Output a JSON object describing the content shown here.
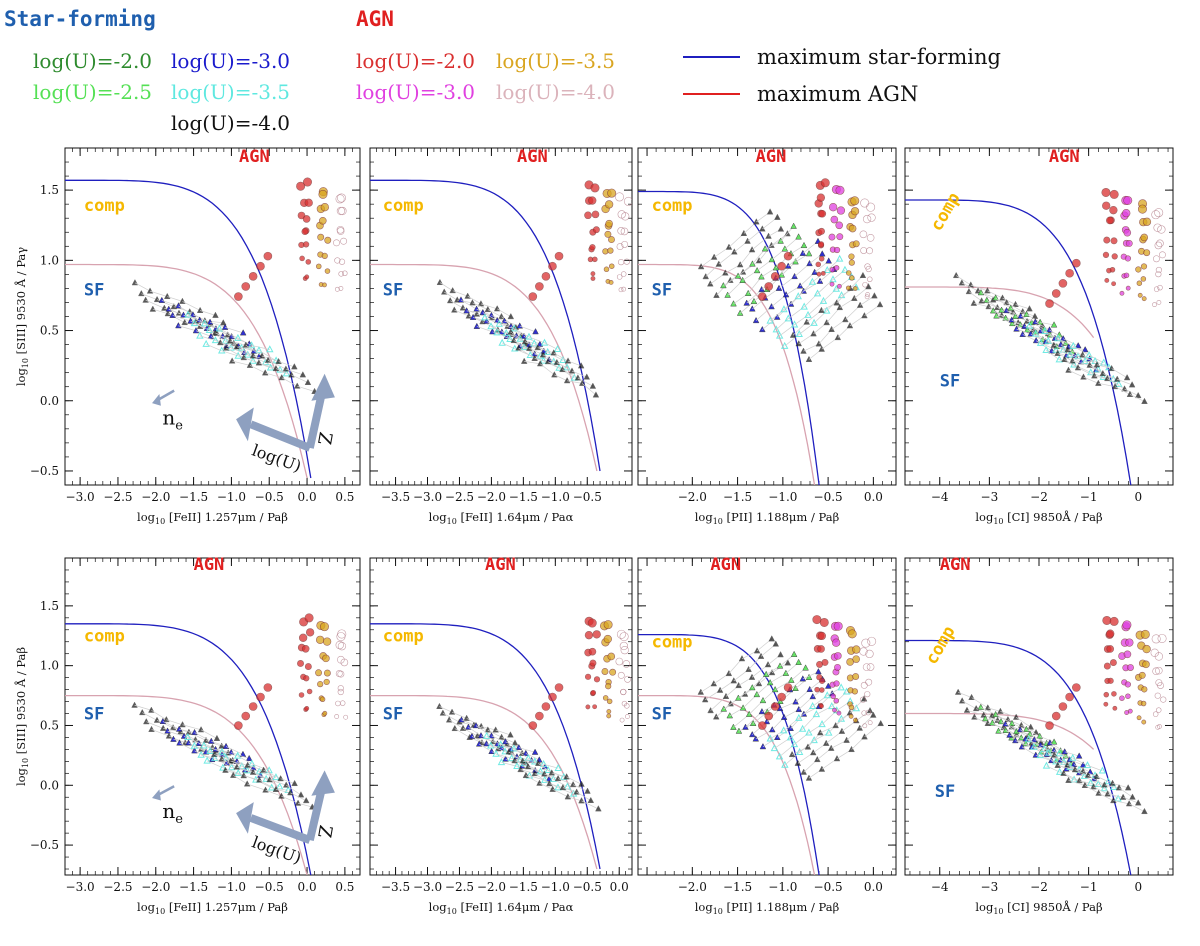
{
  "legend": {
    "sf_title": "Star-forming",
    "agn_title": "AGN",
    "sf_entries": [
      {
        "label": "log(U)=-2.0",
        "color": "#2e8b2e"
      },
      {
        "label": "log(U)=-3.0",
        "color": "#1a1acc"
      },
      {
        "label": "log(U)=-2.5",
        "color": "#55e055"
      },
      {
        "label": "log(U)=-3.5",
        "color": "#5fe8e0"
      },
      {
        "label": "log(U)=-4.0",
        "color": "#111111"
      }
    ],
    "agn_entries": [
      {
        "label": "log(U)=-2.0",
        "color": "#d93030"
      },
      {
        "label": "log(U)=-3.5",
        "color": "#d9a520"
      },
      {
        "label": "log(U)=-3.0",
        "color": "#e040e0"
      },
      {
        "label": "log(U)=-4.0",
        "color": "#dbb3bb"
      }
    ],
    "lines": [
      {
        "label": "maximum star-forming",
        "color": "#1f1fbf"
      },
      {
        "label": "maximum AGN",
        "color": "#e02020"
      }
    ]
  },
  "region_labels": {
    "agn": "AGN",
    "comp": "comp",
    "sf": "SF"
  },
  "arrow_labels": {
    "ne": "n",
    "ne_sub": "e",
    "logu": "log(U)",
    "z": "Z"
  },
  "chart_data": [
    {
      "type": "scatter",
      "row": 0,
      "col": 0,
      "sf_shape": "low",
      "xlabel": "log10 [FeII] 1.257μm / Paβ",
      "ylabel": "log10 [SIII] 9530 Å / Paγ",
      "xlim": [
        -3.2,
        0.7
      ],
      "ylim": [
        -0.6,
        1.8
      ],
      "xticks": [
        -3.0,
        -2.5,
        -2.0,
        -1.5,
        -1.0,
        -0.5,
        0.0,
        0.5
      ],
      "xticklabels": [
        "−3.0",
        "−2.5",
        "−2.0",
        "−1.5",
        "−1.0",
        "−0.5",
        "0.0",
        "0.5"
      ],
      "yticks": [
        -0.5,
        0.0,
        0.5,
        1.0,
        1.5
      ],
      "yticklabels": [
        "−0.5",
        "0.0",
        "0.5",
        "1.0",
        "1.5"
      ],
      "max_sf": {
        "x0": -3.2,
        "y0": 1.57,
        "xe": 0.05,
        "ye": -0.55
      },
      "max_agn": {
        "x0": -3.2,
        "y0": 0.97,
        "xe": 0.0,
        "ye": -0.55
      },
      "clusters": {
        "sf_x": -1.3,
        "sf_y": 0.55,
        "agn_x": -0.05,
        "agn_y": 1.15
      },
      "region_pos": {
        "agn": [
          -0.9,
          1.7
        ],
        "comp": [
          -2.95,
          1.35
        ],
        "sf": [
          -2.95,
          0.75
        ]
      },
      "arrows": true
    },
    {
      "type": "scatter",
      "row": 0,
      "col": 1,
      "sf_shape": "low",
      "xlabel": "log10 [FeII] 1.64μm / Paα",
      "ylabel": "",
      "xlim": [
        -3.9,
        0.2
      ],
      "ylim": [
        -0.6,
        1.8
      ],
      "xticks": [
        -3.5,
        -3.0,
        -2.5,
        -2.0,
        -1.5,
        -1.0,
        -0.5
      ],
      "xticklabels": [
        "−3.5",
        "−3.0",
        "−2.5",
        "−2.0",
        "−1.5",
        "−1.0",
        "−0.5"
      ],
      "yticks": [
        -0.5,
        0.0,
        0.5,
        1.0,
        1.5
      ],
      "yticklabels": [],
      "max_sf": {
        "x0": -3.9,
        "y0": 1.57,
        "xe": -0.3,
        "ye": -0.5
      },
      "max_agn": {
        "x0": -3.9,
        "y0": 0.97,
        "xe": -0.35,
        "ye": -0.5
      },
      "clusters": {
        "sf_x": -1.8,
        "sf_y": 0.55,
        "agn_x": -0.45,
        "agn_y": 1.15
      },
      "region_pos": {
        "agn": [
          -1.6,
          1.7
        ],
        "comp": [
          -3.7,
          1.35
        ],
        "sf": [
          -3.7,
          0.75
        ]
      },
      "arrows": false
    },
    {
      "type": "scatter",
      "row": 0,
      "col": 2,
      "sf_shape": "high",
      "xlabel": "log10 [PII] 1.188μm / Paβ",
      "ylabel": "",
      "xlim": [
        -2.6,
        0.25
      ],
      "ylim": [
        -0.6,
        1.8
      ],
      "xticks": [
        -2.5,
        -2.0,
        -1.5,
        -1.0,
        -0.5,
        0.0
      ],
      "xticklabels": [
        "",
        "−2.0",
        "−1.5",
        "−1.0",
        "−0.5",
        "0.0"
      ],
      "yticks": [
        -0.5,
        0.0,
        0.5,
        1.0,
        1.5
      ],
      "yticklabels": [],
      "max_sf": {
        "x0": -2.6,
        "y0": 1.49,
        "xe": -0.6,
        "ye": -0.6
      },
      "max_agn": {
        "x0": -2.6,
        "y0": 0.97,
        "xe": -0.65,
        "ye": -0.6
      },
      "clusters": {
        "sf_x": -1.2,
        "sf_y": 0.65,
        "agn_x": -0.6,
        "agn_y": 1.15
      },
      "region_pos": {
        "agn": [
          -1.3,
          1.7
        ],
        "comp": [
          -2.45,
          1.35
        ],
        "sf": [
          -2.45,
          0.75
        ]
      },
      "arrows": false
    },
    {
      "type": "scatter",
      "row": 0,
      "col": 3,
      "sf_shape": "flat",
      "xlabel": "log10 [CI] 9850Å / Paβ",
      "ylabel": "",
      "xlim": [
        -4.7,
        0.7
      ],
      "ylim": [
        -0.6,
        1.8
      ],
      "xticks": [
        -4,
        -3,
        -2,
        -1,
        0
      ],
      "xticklabels": [
        "−4",
        "−3",
        "−2",
        "−1",
        "0"
      ],
      "yticks": [
        -0.5,
        0.0,
        0.5,
        1.0,
        1.5
      ],
      "yticklabels": [],
      "max_sf": {
        "x0": -4.7,
        "y0": 1.43,
        "xe": -0.15,
        "ye": -0.6
      },
      "max_agn": {
        "x0": -4.7,
        "y0": 0.81,
        "xe": -0.9,
        "ye": 0.45
      },
      "clusters": {
        "sf_x": -2.3,
        "sf_y": 0.6,
        "agn_x": -0.6,
        "agn_y": 1.1
      },
      "region_pos": {
        "agn": [
          -1.8,
          1.7
        ],
        "comp": [
          -4.0,
          1.2
        ],
        "sf": [
          -4.0,
          0.1
        ]
      },
      "arrows": false
    },
    {
      "type": "scatter",
      "row": 1,
      "col": 0,
      "sf_shape": "low",
      "xlabel": "log10 [FeII] 1.257μm / Paβ",
      "ylabel": "log10 [SIII] 9530 Å / Paβ",
      "xlim": [
        -3.2,
        0.7
      ],
      "ylim": [
        -0.75,
        1.9
      ],
      "xticks": [
        -3.0,
        -2.5,
        -2.0,
        -1.5,
        -1.0,
        -0.5,
        0.0,
        0.5
      ],
      "xticklabels": [
        "−3.0",
        "−2.5",
        "−2.0",
        "−1.5",
        "−1.0",
        "−0.5",
        "0.0",
        "0.5"
      ],
      "yticks": [
        -0.5,
        0.0,
        0.5,
        1.0,
        1.5
      ],
      "yticklabels": [
        "−0.5",
        "0.0",
        "0.5",
        "1.0",
        "1.5"
      ],
      "max_sf": {
        "x0": -3.2,
        "y0": 1.35,
        "xe": 0.05,
        "ye": -0.75
      },
      "max_agn": {
        "x0": -3.2,
        "y0": 0.75,
        "xe": 0.0,
        "ye": -0.75
      },
      "clusters": {
        "sf_x": -1.3,
        "sf_y": 0.35,
        "agn_x": -0.05,
        "agn_y": 0.95
      },
      "region_pos": {
        "agn": [
          -1.5,
          1.8
        ],
        "comp": [
          -2.95,
          1.2
        ],
        "sf": [
          -2.95,
          0.55
        ]
      },
      "arrows": true
    },
    {
      "type": "scatter",
      "row": 1,
      "col": 1,
      "sf_shape": "low",
      "xlabel": "log10 [FeII] 1.64μm / Paα",
      "ylabel": "",
      "xlim": [
        -3.9,
        0.2
      ],
      "ylim": [
        -0.75,
        1.9
      ],
      "xticks": [
        -3.5,
        -3.0,
        -2.5,
        -2.0,
        -1.5,
        -1.0,
        -0.5,
        0.0
      ],
      "xticklabels": [
        "−3.5",
        "−3.0",
        "−2.5",
        "−2.0",
        "−1.5",
        "−1.0",
        "−0.5",
        "0.0"
      ],
      "yticks": [
        -0.5,
        0.0,
        0.5,
        1.0,
        1.5
      ],
      "yticklabels": [],
      "max_sf": {
        "x0": -3.9,
        "y0": 1.35,
        "xe": -0.3,
        "ye": -0.7
      },
      "max_agn": {
        "x0": -3.9,
        "y0": 0.75,
        "xe": -0.35,
        "ye": -0.7
      },
      "clusters": {
        "sf_x": -1.8,
        "sf_y": 0.35,
        "agn_x": -0.45,
        "agn_y": 0.95
      },
      "region_pos": {
        "agn": [
          -2.1,
          1.8
        ],
        "comp": [
          -3.7,
          1.2
        ],
        "sf": [
          -3.7,
          0.55
        ]
      },
      "arrows": false
    },
    {
      "type": "scatter",
      "row": 1,
      "col": 2,
      "sf_shape": "high",
      "xlabel": "log10 [PII] 1.188μm / Paβ",
      "ylabel": "",
      "xlim": [
        -2.6,
        0.25
      ],
      "ylim": [
        -0.75,
        1.9
      ],
      "xticks": [
        -2.5,
        -2.0,
        -1.5,
        -1.0,
        -0.5,
        0.0
      ],
      "xticklabels": [
        "",
        "−2.0",
        "−1.5",
        "−1.0",
        "−0.5",
        "0.0"
      ],
      "yticks": [
        -0.5,
        0.0,
        0.5,
        1.0,
        1.5
      ],
      "yticklabels": [],
      "max_sf": {
        "x0": -2.6,
        "y0": 1.26,
        "xe": -0.6,
        "ye": -0.75
      },
      "max_agn": {
        "x0": -2.6,
        "y0": 0.75,
        "xe": -0.65,
        "ye": -0.75
      },
      "clusters": {
        "sf_x": -1.2,
        "sf_y": 0.45,
        "agn_x": -0.6,
        "agn_y": 0.95
      },
      "region_pos": {
        "agn": [
          -1.8,
          1.8
        ],
        "comp": [
          -2.45,
          1.15
        ],
        "sf": [
          -2.45,
          0.55
        ]
      },
      "arrows": false
    },
    {
      "type": "scatter",
      "row": 1,
      "col": 3,
      "sf_shape": "flat",
      "xlabel": "log10 [CI] 9850Å / Paβ",
      "ylabel": "",
      "xlim": [
        -4.7,
        0.7
      ],
      "ylim": [
        -0.75,
        1.9
      ],
      "xticks": [
        -4,
        -3,
        -2,
        -1,
        0
      ],
      "xticklabels": [
        "−4",
        "−3",
        "−2",
        "−1",
        "0"
      ],
      "yticks": [
        -0.5,
        0.0,
        0.5,
        1.0,
        1.5
      ],
      "yticklabels": [],
      "max_sf": {
        "x0": -4.7,
        "y0": 1.21,
        "xe": -0.15,
        "ye": -0.75
      },
      "max_agn": {
        "x0": -4.7,
        "y0": 0.6,
        "xe": -0.9,
        "ye": 0.3
      },
      "clusters": {
        "sf_x": -2.3,
        "sf_y": 0.45,
        "agn_x": -0.6,
        "agn_y": 0.95
      },
      "region_pos": {
        "agn": [
          -4.0,
          1.8
        ],
        "comp": [
          -4.1,
          1.0
        ],
        "sf": [
          -4.1,
          -0.1
        ]
      },
      "arrows": false
    }
  ]
}
